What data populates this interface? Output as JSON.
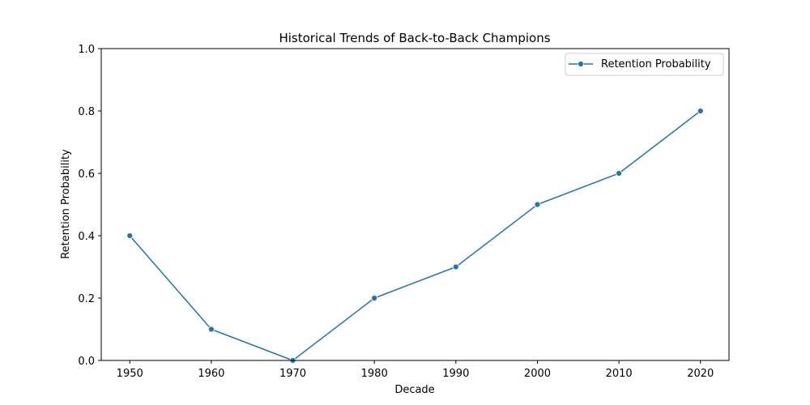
{
  "chart_data": {
    "type": "line",
    "title": "Historical Trends of Back-to-Back Champions",
    "xlabel": "Decade",
    "ylabel": "Retention Probability",
    "x": [
      1950,
      1960,
      1970,
      1980,
      1990,
      2000,
      2010,
      2020
    ],
    "x_tick_labels": [
      "1950",
      "1960",
      "1970",
      "1980",
      "1990",
      "2000",
      "2010",
      "2020"
    ],
    "y_ticks": [
      0.0,
      0.2,
      0.4,
      0.6,
      0.8,
      1.0
    ],
    "y_tick_labels": [
      "0.0",
      "0.2",
      "0.4",
      "0.6",
      "0.8",
      "1.0"
    ],
    "ylim": [
      0.0,
      1.0
    ],
    "xlim": [
      1946.5,
      2023.5
    ],
    "grid": false,
    "legend_position": "top-right",
    "series": [
      {
        "name": "Retention Probability",
        "color": "#1f77b4",
        "marker": "circle",
        "values": [
          0.4,
          0.1,
          0.0,
          0.2,
          0.3,
          0.5,
          0.6,
          0.8
        ]
      }
    ]
  }
}
